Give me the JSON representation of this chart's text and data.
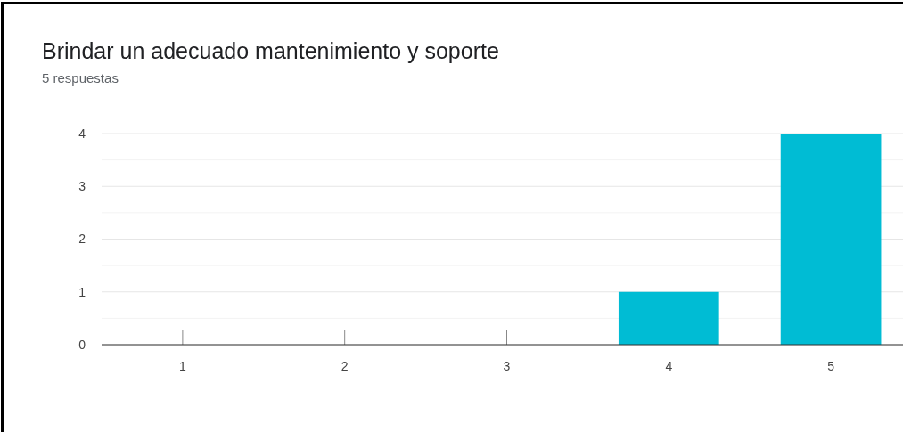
{
  "chart_data": {
    "type": "bar",
    "title": "Brindar un adecuado mantenimiento y soporte",
    "subtitle": "5 respuestas",
    "categories": [
      "1",
      "2",
      "3",
      "4",
      "5"
    ],
    "values": [
      0,
      0,
      0,
      1,
      4
    ],
    "color": "#00bcd4",
    "ylim": [
      0,
      4
    ],
    "yticks": [
      0,
      1,
      2,
      3,
      4
    ],
    "grid": "y"
  }
}
